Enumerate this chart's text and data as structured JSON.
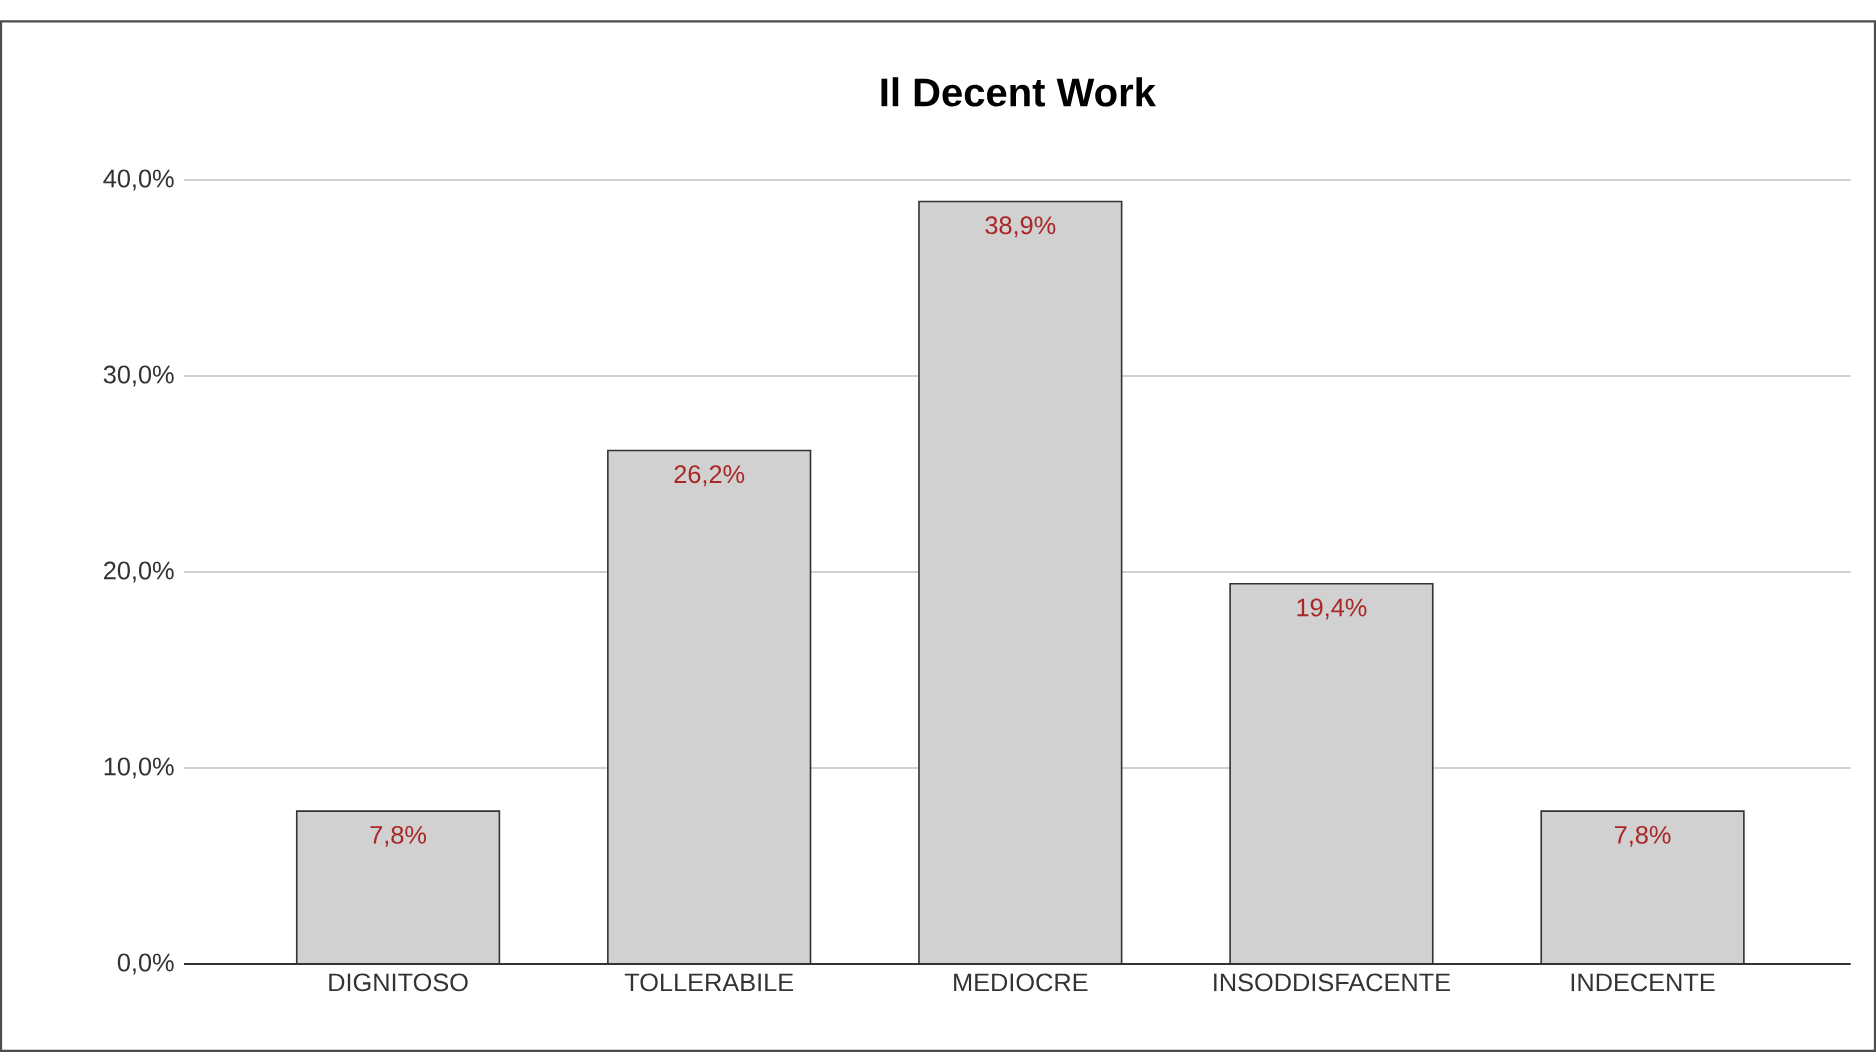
{
  "chart_data": {
    "type": "bar",
    "title": "Il Decent Work",
    "categories": [
      "DIGNITOSO",
      "TOLLERABILE",
      "MEDIOCRE",
      "INSODDISFACENTE",
      "INDECENTE"
    ],
    "values": [
      7.8,
      26.2,
      38.9,
      19.4,
      7.8
    ],
    "value_labels": [
      "7,8%",
      "26,2%",
      "38,9%",
      "19,4%",
      "7,8%"
    ],
    "color": "#d0d1d0",
    "ylim": [
      0,
      40
    ],
    "yticks": [
      {
        "value": 0,
        "label": "0,0%"
      },
      {
        "value": 10,
        "label": "10,0%"
      },
      {
        "value": 20,
        "label": "20,0%"
      },
      {
        "value": 30,
        "label": "30,0%"
      },
      {
        "value": 40,
        "label": "40,0%"
      }
    ],
    "grid": "y"
  }
}
